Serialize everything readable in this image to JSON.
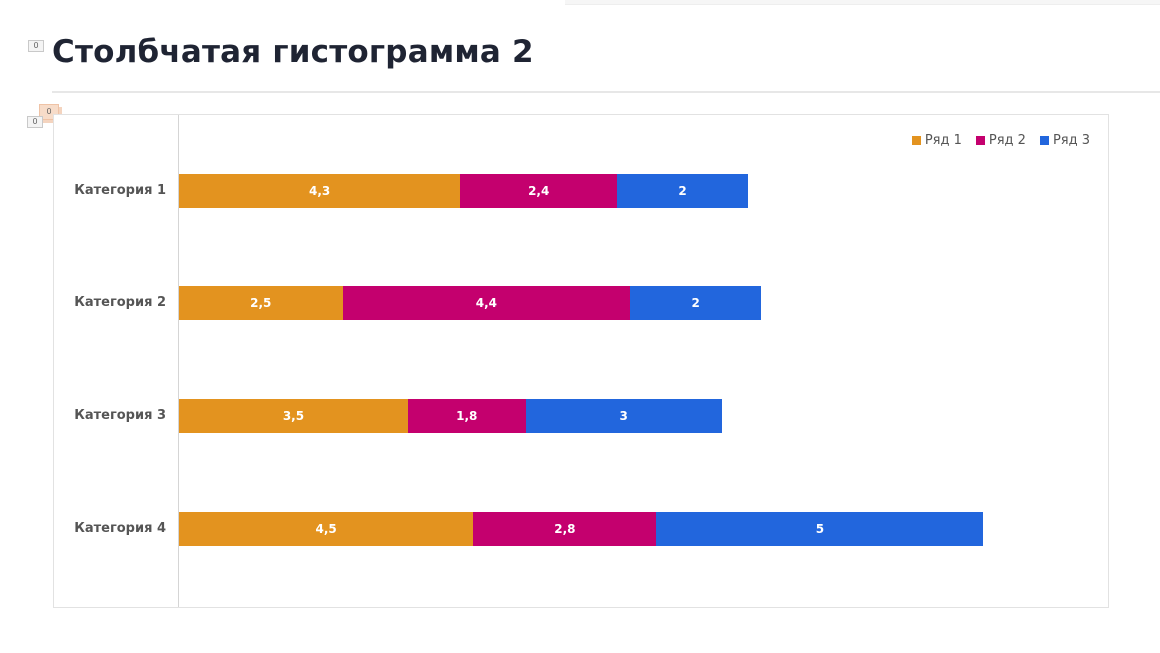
{
  "page": {
    "title": "Столбчатая гистограмма 2",
    "badges": {
      "title_badge": "0",
      "chart_badge": "0",
      "orange_badge": "0"
    }
  },
  "colors": {
    "series1": "#e3931f",
    "series2": "#c4006e",
    "series3": "#2266dd"
  },
  "chart_data": {
    "type": "bar",
    "orientation": "horizontal",
    "stacked": true,
    "title": "",
    "xlabel": "",
    "ylabel": "",
    "categories": [
      "Категория 1",
      "Категория 2",
      "Категория 3",
      "Категория 4"
    ],
    "series": [
      {
        "name": "Ряд 1",
        "color": "#e3931f",
        "values": [
          4.3,
          2.5,
          3.5,
          4.5
        ],
        "labels": [
          "4,3",
          "2,5",
          "3,5",
          "4,5"
        ]
      },
      {
        "name": "Ряд 2",
        "color": "#c4006e",
        "values": [
          2.4,
          4.4,
          1.8,
          2.8
        ],
        "labels": [
          "2,4",
          "4,4",
          "1,8",
          "2,8"
        ]
      },
      {
        "name": "Ряд 3",
        "color": "#2266dd",
        "values": [
          2,
          2,
          3,
          5
        ],
        "labels": [
          "2",
          "2",
          "3",
          "5"
        ]
      }
    ],
    "legend_position": "top-right",
    "grid": false,
    "xlim": [
      0,
      14
    ]
  }
}
